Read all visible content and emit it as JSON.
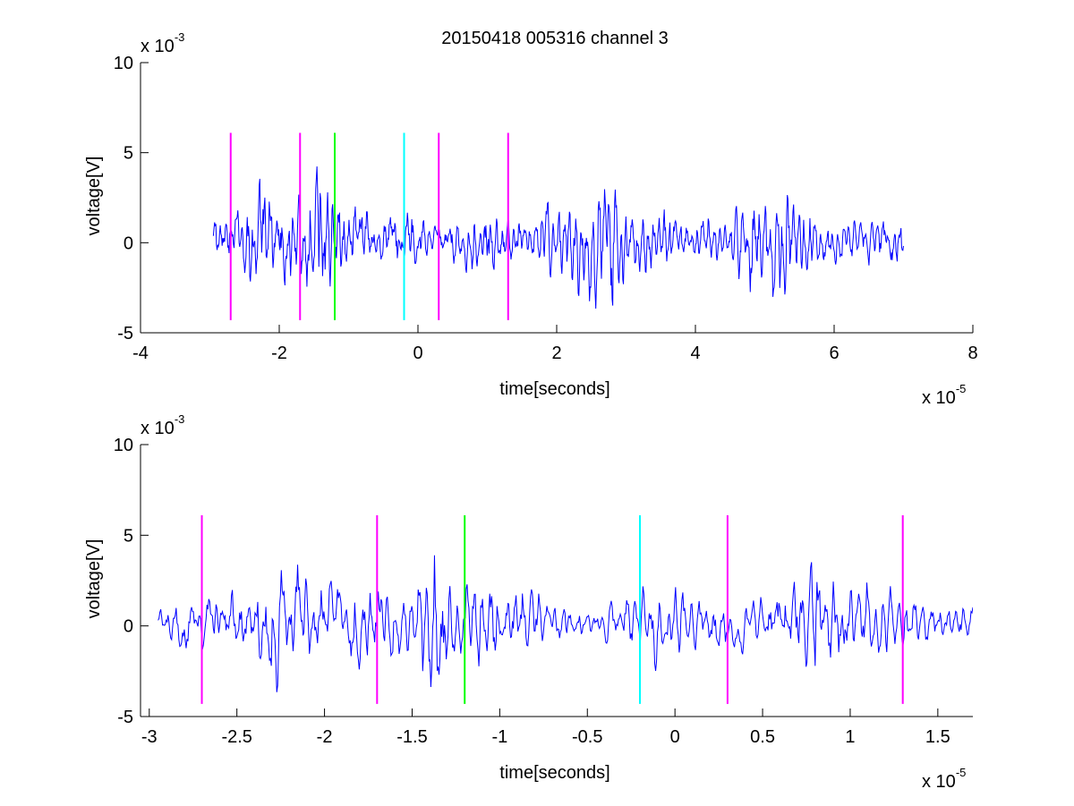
{
  "chart_data": [
    {
      "type": "line",
      "title": "20150418 005316 channel 3",
      "xlabel": "time[seconds]",
      "ylabel": "voltage[V]",
      "x_exponent_label": "x 10",
      "x_exponent_power": "-5",
      "y_exponent_label": "x 10",
      "y_exponent_power": "-3",
      "xlim": [
        -4,
        8
      ],
      "ylim": [
        -5,
        10
      ],
      "xticks": [
        -4,
        -2,
        0,
        2,
        4,
        6,
        8
      ],
      "xtick_labels": [
        "-4",
        "-2",
        "0",
        "2",
        "4",
        "6",
        "8"
      ],
      "yticks": [
        -5,
        0,
        5,
        10
      ],
      "ytick_labels": [
        "-5",
        "0",
        "5",
        "10"
      ],
      "signal_color": "#0000ff",
      "signal_x_range": [
        -2.95,
        7.0
      ],
      "envelope": [
        {
          "x": -2.95,
          "amp": 0.9
        },
        {
          "x": -2.6,
          "amp": 1.4
        },
        {
          "x": -2.3,
          "amp": 2.8
        },
        {
          "x": -2.0,
          "amp": 2.0
        },
        {
          "x": -1.7,
          "amp": 1.9
        },
        {
          "x": -1.4,
          "amp": 3.4
        },
        {
          "x": -1.15,
          "amp": 1.9
        },
        {
          "x": -0.8,
          "amp": 1.4
        },
        {
          "x": -0.5,
          "amp": 0.8
        },
        {
          "x": -0.2,
          "amp": 1.6
        },
        {
          "x": 0.1,
          "amp": 0.9
        },
        {
          "x": 0.4,
          "amp": 0.9
        },
        {
          "x": 0.8,
          "amp": 1.6
        },
        {
          "x": 1.2,
          "amp": 1.3
        },
        {
          "x": 1.6,
          "amp": 0.9
        },
        {
          "x": 2.2,
          "amp": 2.3
        },
        {
          "x": 2.7,
          "amp": 2.9
        },
        {
          "x": 3.2,
          "amp": 1.5
        },
        {
          "x": 3.8,
          "amp": 1.0
        },
        {
          "x": 4.4,
          "amp": 1.0
        },
        {
          "x": 4.8,
          "amp": 2.5
        },
        {
          "x": 5.3,
          "amp": 2.7
        },
        {
          "x": 5.8,
          "amp": 1.0
        },
        {
          "x": 6.4,
          "amp": 0.9
        },
        {
          "x": 7.0,
          "amp": 1.0
        }
      ],
      "markers": [
        {
          "x": -2.7,
          "y_min": -4.3,
          "y_max": 6.1,
          "color": "#ff00ff"
        },
        {
          "x": -1.7,
          "y_min": -4.3,
          "y_max": 6.1,
          "color": "#ff00ff"
        },
        {
          "x": -1.2,
          "y_min": -4.3,
          "y_max": 6.1,
          "color": "#00ff00"
        },
        {
          "x": -0.2,
          "y_min": -4.3,
          "y_max": 6.1,
          "color": "#00ffff"
        },
        {
          "x": 0.3,
          "y_min": -4.3,
          "y_max": 6.1,
          "color": "#ff00ff"
        },
        {
          "x": 1.3,
          "y_min": -4.3,
          "y_max": 6.1,
          "color": "#ff00ff"
        }
      ]
    },
    {
      "type": "line",
      "title": "",
      "xlabel": "time[seconds]",
      "ylabel": "voltage[V]",
      "x_exponent_label": "x 10",
      "x_exponent_power": "-5",
      "y_exponent_label": "x 10",
      "y_exponent_power": "-3",
      "xlim": [
        -3.05,
        1.7
      ],
      "ylim": [
        -5,
        10
      ],
      "xticks": [
        -3,
        -2.5,
        -2,
        -1.5,
        -1,
        -0.5,
        0,
        0.5,
        1,
        1.5
      ],
      "xtick_labels": [
        "-3",
        "-2.5",
        "-2",
        "-1.5",
        "-1",
        "-0.5",
        "0",
        "0.5",
        "1",
        "1.5"
      ],
      "yticks": [
        -5,
        0,
        5,
        10
      ],
      "ytick_labels": [
        "-5",
        "0",
        "5",
        "10"
      ],
      "signal_color": "#0000ff",
      "signal_x_range": [
        -2.95,
        1.7
      ],
      "envelope": [
        {
          "x": -2.95,
          "amp": 0.9
        },
        {
          "x": -2.7,
          "amp": 1.3
        },
        {
          "x": -2.45,
          "amp": 1.2
        },
        {
          "x": -2.3,
          "amp": 3.2
        },
        {
          "x": -2.1,
          "amp": 2.2
        },
        {
          "x": -1.9,
          "amp": 1.8
        },
        {
          "x": -1.7,
          "amp": 1.9
        },
        {
          "x": -1.5,
          "amp": 1.3
        },
        {
          "x": -1.38,
          "amp": 4.3
        },
        {
          "x": -1.25,
          "amp": 2.2
        },
        {
          "x": -1.05,
          "amp": 2.1
        },
        {
          "x": -0.8,
          "amp": 1.2
        },
        {
          "x": -0.5,
          "amp": 0.6
        },
        {
          "x": -0.25,
          "amp": 1.3
        },
        {
          "x": -0.1,
          "amp": 1.8
        },
        {
          "x": 0.2,
          "amp": 1.1
        },
        {
          "x": 0.5,
          "amp": 1.0
        },
        {
          "x": 0.7,
          "amp": 1.8
        },
        {
          "x": 0.8,
          "amp": 2.6
        },
        {
          "x": 1.0,
          "amp": 1.9
        },
        {
          "x": 1.25,
          "amp": 1.4
        },
        {
          "x": 1.5,
          "amp": 0.8
        },
        {
          "x": 1.7,
          "amp": 0.8
        }
      ],
      "markers": [
        {
          "x": -2.7,
          "y_min": -4.3,
          "y_max": 6.1,
          "color": "#ff00ff"
        },
        {
          "x": -1.7,
          "y_min": -4.3,
          "y_max": 6.1,
          "color": "#ff00ff"
        },
        {
          "x": -1.2,
          "y_min": -4.3,
          "y_max": 6.1,
          "color": "#00ff00"
        },
        {
          "x": -0.2,
          "y_min": -4.3,
          "y_max": 6.1,
          "color": "#00ffff"
        },
        {
          "x": 0.3,
          "y_min": -4.3,
          "y_max": 6.1,
          "color": "#ff00ff"
        },
        {
          "x": 1.3,
          "y_min": -4.3,
          "y_max": 6.1,
          "color": "#ff00ff"
        }
      ]
    }
  ]
}
